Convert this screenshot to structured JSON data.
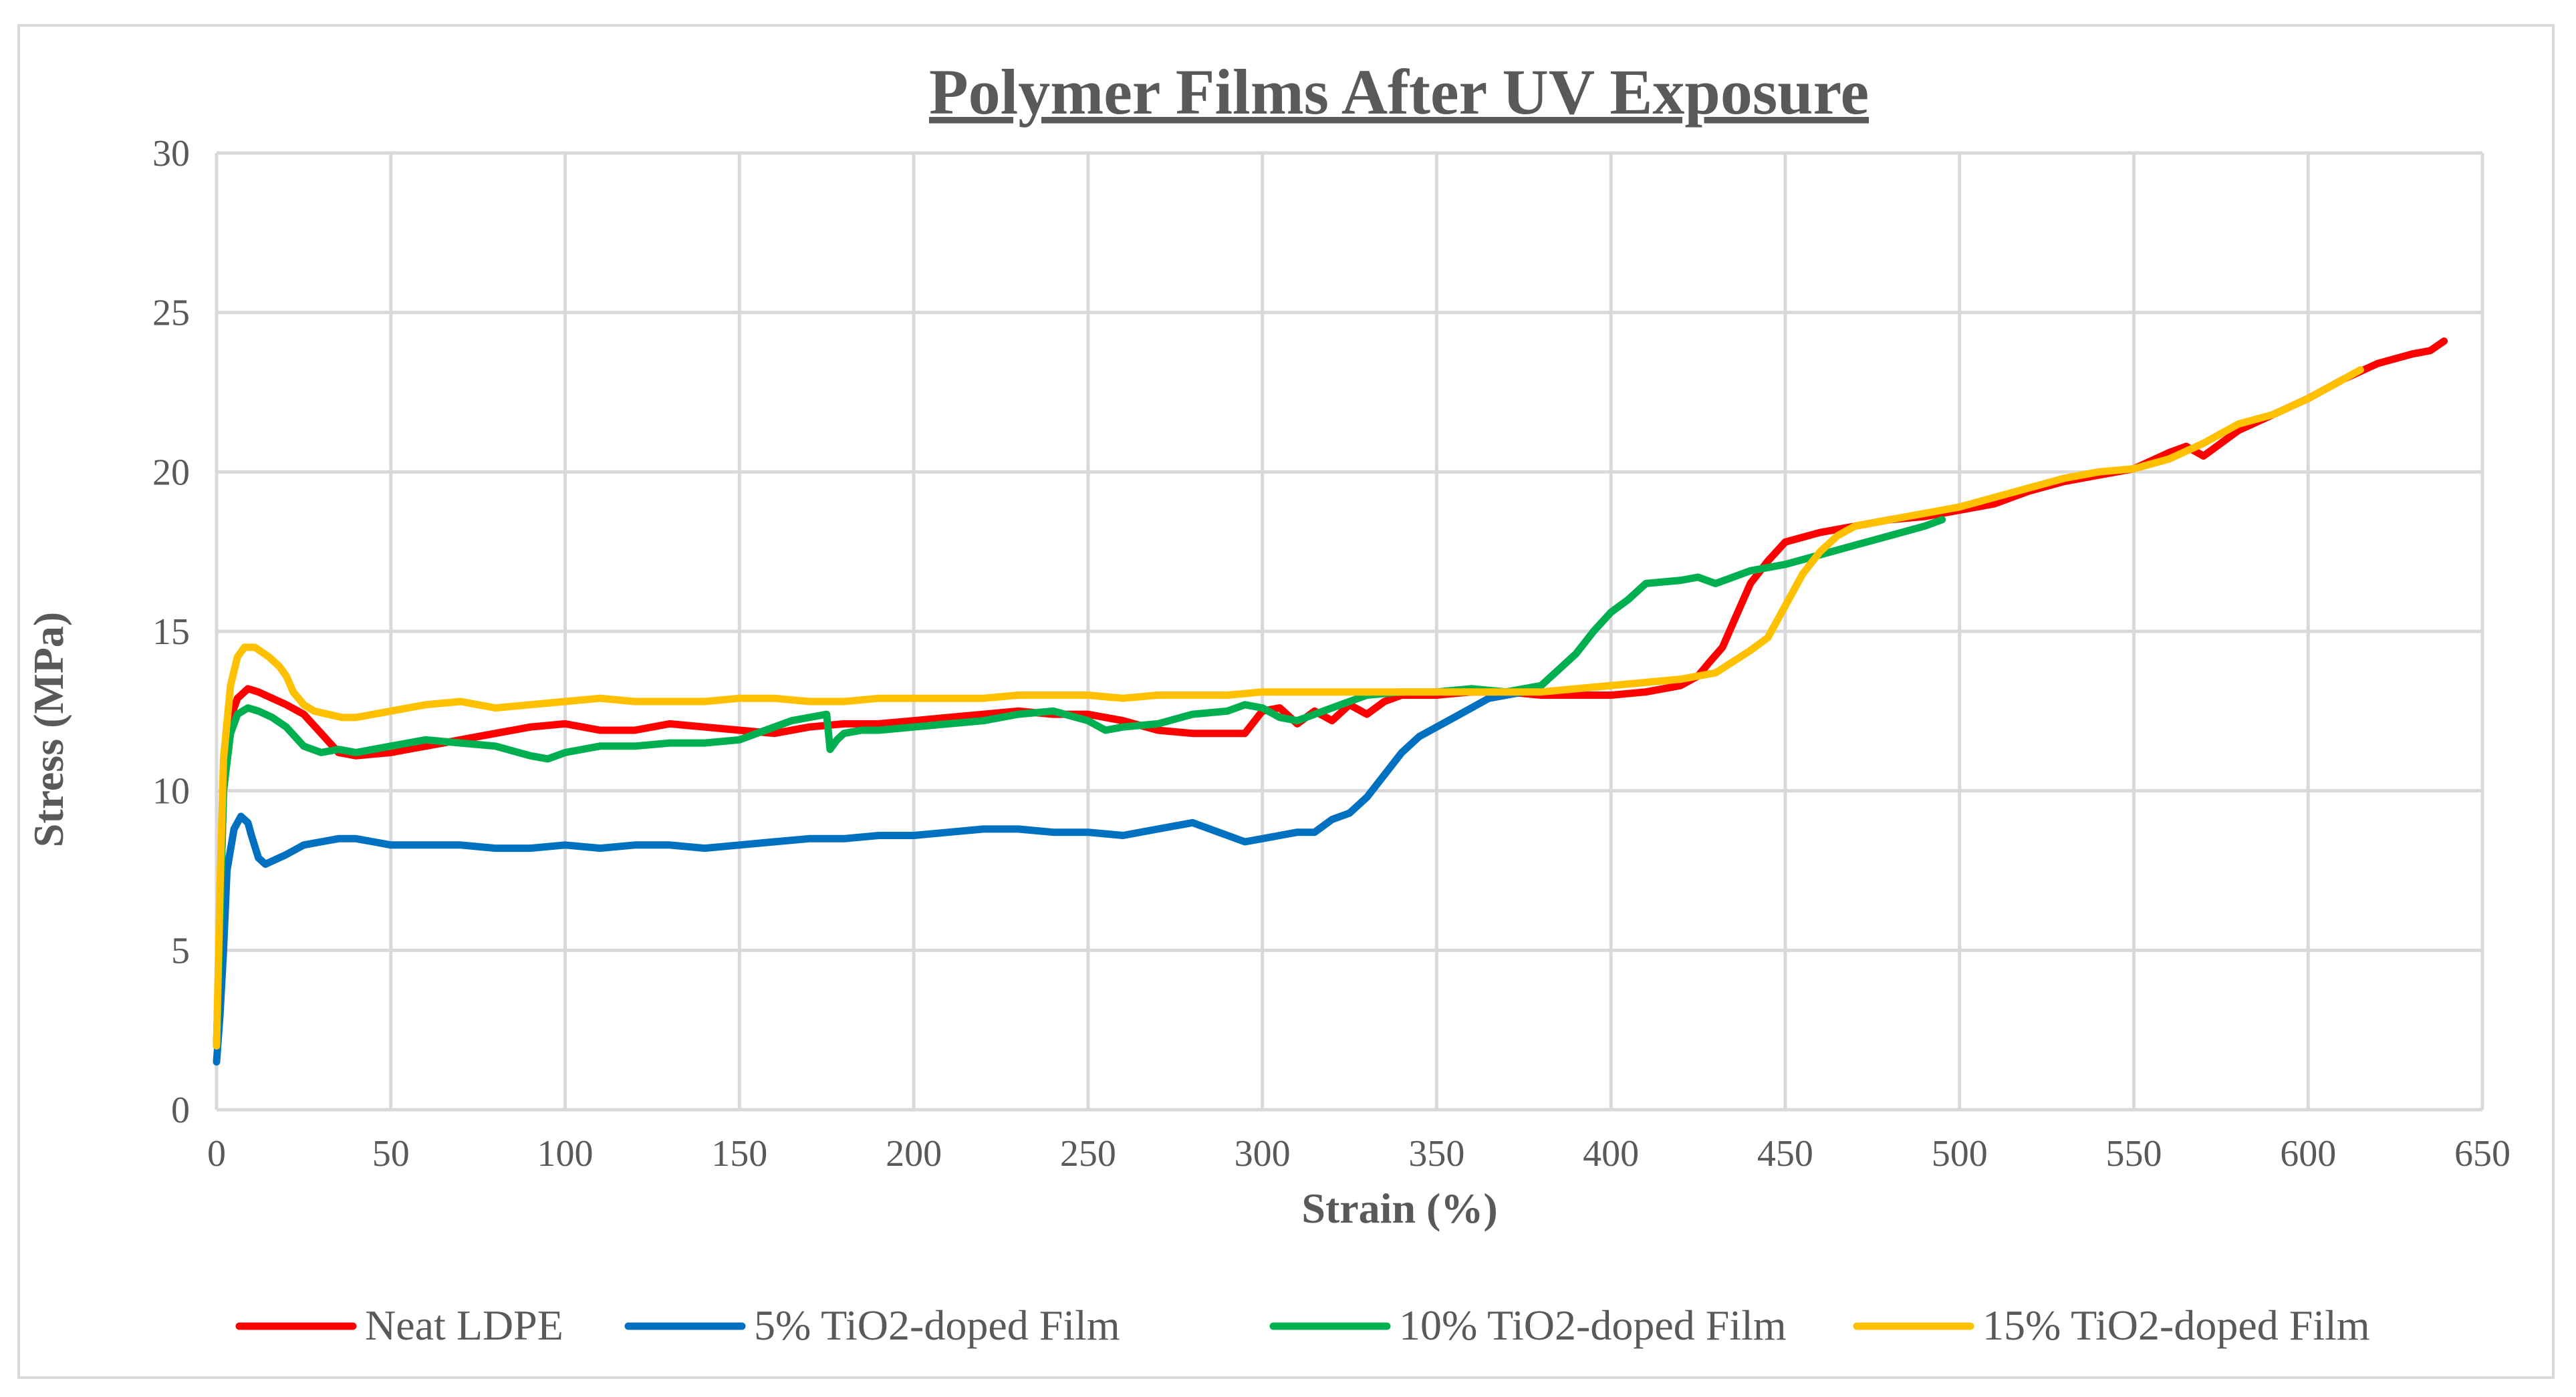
{
  "chart_data": {
    "type": "line",
    "title": "Polymer Films After UV Exposure",
    "xlabel": "Strain (%)",
    "ylabel": "Stress (MPa)",
    "xlim": [
      0,
      650
    ],
    "ylim": [
      0,
      30
    ],
    "xticks": [
      0,
      50,
      100,
      150,
      200,
      250,
      300,
      350,
      400,
      450,
      500,
      550,
      600,
      650
    ],
    "yticks": [
      0,
      5,
      10,
      15,
      20,
      25,
      30
    ],
    "grid": true,
    "legend": "bottom",
    "series": [
      {
        "name": "Neat LDPE",
        "color": "#ff0000",
        "x": [
          0,
          1,
          2,
          4,
          6,
          9,
          12,
          16,
          20,
          25,
          30,
          35,
          40,
          50,
          60,
          70,
          80,
          90,
          100,
          110,
          120,
          130,
          140,
          150,
          160,
          170,
          180,
          190,
          200,
          210,
          220,
          230,
          240,
          250,
          260,
          270,
          280,
          290,
          295,
          300,
          305,
          310,
          315,
          320,
          325,
          330,
          335,
          340,
          350,
          360,
          370,
          380,
          390,
          400,
          410,
          420,
          425,
          428,
          432,
          436,
          440,
          445,
          450,
          460,
          470,
          480,
          490,
          500,
          510,
          520,
          530,
          540,
          550,
          560,
          565,
          570,
          580,
          590,
          600,
          610,
          620,
          630,
          635,
          639
        ],
        "y": [
          2,
          6,
          10,
          12.3,
          12.9,
          13.2,
          13.1,
          12.9,
          12.7,
          12.4,
          11.8,
          11.2,
          11.1,
          11.2,
          11.4,
          11.6,
          11.8,
          12.0,
          12.1,
          11.9,
          11.9,
          12.1,
          12.0,
          11.9,
          11.8,
          12.0,
          12.1,
          12.1,
          12.2,
          12.3,
          12.4,
          12.5,
          12.4,
          12.4,
          12.2,
          11.9,
          11.8,
          11.8,
          11.8,
          12.5,
          12.6,
          12.1,
          12.5,
          12.2,
          12.7,
          12.4,
          12.8,
          13.0,
          13.0,
          13.1,
          13.1,
          13.0,
          13.0,
          13.0,
          13.1,
          13.3,
          13.6,
          14.0,
          14.5,
          15.5,
          16.5,
          17.2,
          17.8,
          18.1,
          18.3,
          18.5,
          18.6,
          18.8,
          19.0,
          19.4,
          19.7,
          19.9,
          20.1,
          20.6,
          20.8,
          20.5,
          21.3,
          21.8,
          22.3,
          22.9,
          23.4,
          23.7,
          23.8,
          24.1
        ]
      },
      {
        "name": "5% TiO2-doped Film",
        "color": "#0070c0",
        "x": [
          0,
          1,
          2,
          3,
          5,
          7,
          9,
          10,
          12,
          14,
          16,
          20,
          25,
          30,
          35,
          40,
          45,
          50,
          60,
          70,
          80,
          90,
          100,
          110,
          120,
          130,
          140,
          150,
          160,
          170,
          180,
          190,
          200,
          210,
          220,
          230,
          240,
          250,
          260,
          270,
          280,
          290,
          295,
          300,
          305,
          310,
          315,
          320,
          325,
          330,
          335,
          340,
          345,
          350,
          355,
          360,
          365,
          370,
          375
        ],
        "y": [
          1.5,
          3,
          5,
          7.5,
          8.8,
          9.2,
          9.0,
          8.6,
          7.9,
          7.7,
          7.8,
          8.0,
          8.3,
          8.4,
          8.5,
          8.5,
          8.4,
          8.3,
          8.3,
          8.3,
          8.2,
          8.2,
          8.3,
          8.2,
          8.3,
          8.3,
          8.2,
          8.3,
          8.4,
          8.5,
          8.5,
          8.6,
          8.6,
          8.7,
          8.8,
          8.8,
          8.7,
          8.7,
          8.6,
          8.8,
          9.0,
          8.6,
          8.4,
          8.5,
          8.6,
          8.7,
          8.7,
          9.1,
          9.3,
          9.8,
          10.5,
          11.2,
          11.7,
          12.0,
          12.3,
          12.6,
          12.9,
          13.0,
          13.1
        ]
      },
      {
        "name": "10% TiO2-doped Film",
        "color": "#00b050",
        "x": [
          0,
          1,
          2,
          4,
          6,
          9,
          12,
          16,
          20,
          25,
          30,
          35,
          40,
          50,
          60,
          70,
          80,
          90,
          95,
          100,
          110,
          120,
          130,
          140,
          150,
          155,
          160,
          165,
          170,
          175,
          176,
          178,
          180,
          185,
          190,
          200,
          210,
          220,
          230,
          240,
          250,
          255,
          260,
          270,
          280,
          290,
          295,
          300,
          305,
          310,
          315,
          320,
          325,
          330,
          340,
          350,
          360,
          370,
          380,
          385,
          390,
          395,
          400,
          405,
          410,
          420,
          425,
          430,
          435,
          440,
          450,
          460,
          470,
          480,
          490,
          495
        ],
        "y": [
          2,
          6,
          10,
          11.8,
          12.4,
          12.6,
          12.5,
          12.3,
          12.0,
          11.4,
          11.2,
          11.3,
          11.2,
          11.4,
          11.6,
          11.5,
          11.4,
          11.1,
          11.0,
          11.2,
          11.4,
          11.4,
          11.5,
          11.5,
          11.6,
          11.8,
          12.0,
          12.2,
          12.3,
          12.4,
          11.3,
          11.6,
          11.8,
          11.9,
          11.9,
          12.0,
          12.1,
          12.2,
          12.4,
          12.5,
          12.2,
          11.9,
          12.0,
          12.1,
          12.4,
          12.5,
          12.7,
          12.6,
          12.3,
          12.2,
          12.4,
          12.6,
          12.8,
          13.0,
          13.1,
          13.1,
          13.2,
          13.1,
          13.3,
          13.8,
          14.3,
          15.0,
          15.6,
          16.0,
          16.5,
          16.6,
          16.7,
          16.5,
          16.7,
          16.9,
          17.1,
          17.4,
          17.7,
          18.0,
          18.3,
          18.5
        ]
      },
      {
        "name": "15% TiO2-doped Film",
        "color": "#ffc000",
        "x": [
          0,
          1,
          2,
          4,
          6,
          8,
          11,
          15,
          18,
          20,
          22,
          25,
          28,
          32,
          36,
          40,
          45,
          50,
          60,
          70,
          75,
          80,
          90,
          100,
          110,
          120,
          130,
          140,
          150,
          160,
          170,
          180,
          190,
          200,
          210,
          220,
          230,
          240,
          250,
          260,
          270,
          280,
          290,
          300,
          310,
          320,
          330,
          340,
          350,
          360,
          370,
          380,
          390,
          400,
          410,
          420,
          430,
          440,
          445,
          450,
          455,
          460,
          465,
          470,
          480,
          490,
          500,
          510,
          520,
          530,
          540,
          550,
          560,
          570,
          580,
          590,
          600,
          610,
          615
        ],
        "y": [
          2,
          7,
          11,
          13.3,
          14.2,
          14.5,
          14.5,
          14.2,
          13.9,
          13.6,
          13.1,
          12.7,
          12.5,
          12.4,
          12.3,
          12.3,
          12.4,
          12.5,
          12.7,
          12.8,
          12.7,
          12.6,
          12.7,
          12.8,
          12.9,
          12.8,
          12.8,
          12.8,
          12.9,
          12.9,
          12.8,
          12.8,
          12.9,
          12.9,
          12.9,
          12.9,
          13.0,
          13.0,
          13.0,
          12.9,
          13.0,
          13.0,
          13.0,
          13.1,
          13.1,
          13.1,
          13.1,
          13.1,
          13.1,
          13.1,
          13.1,
          13.1,
          13.2,
          13.3,
          13.4,
          13.5,
          13.7,
          14.4,
          14.8,
          15.8,
          16.8,
          17.5,
          18.0,
          18.3,
          18.5,
          18.7,
          18.9,
          19.2,
          19.5,
          19.8,
          20.0,
          20.1,
          20.4,
          20.9,
          21.5,
          21.8,
          22.3,
          22.9,
          23.2
        ]
      }
    ]
  }
}
